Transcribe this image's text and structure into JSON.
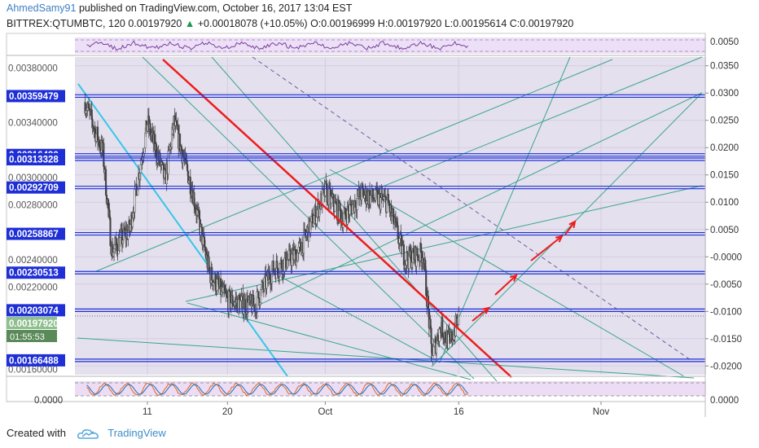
{
  "header": {
    "author": "AhmedSamy91",
    "published_text": "published on TradingView.com, October 16, 2017 13:04 EST",
    "symbol": "BITTREX:QTUMBTC, 120",
    "last_price": "0.00197920",
    "change_arrow": "▲",
    "change": "+0.00018078 (+10.05%)",
    "open": "O:0.00196999",
    "high": "H:0.00197920",
    "low": "L:0.00195614",
    "close": "C:0.00197920"
  },
  "footer": {
    "created_with": "Created with",
    "brand": "TradingView"
  },
  "colors": {
    "plot_bg": "#e4e0ee",
    "hline": "#1f2fd6",
    "teal": "#3aa58e",
    "red": "#ee1c1c",
    "cyan": "#38c6e8",
    "candle": "#424242",
    "osc_band": "#ece0f6",
    "osc_purple": "#7a3f9c"
  },
  "chart_data": {
    "type": "candlestick",
    "x_axis": {
      "ticks": [
        {
          "label": "11",
          "date": "2017-09-11"
        },
        {
          "label": "20",
          "date": "2017-09-20"
        },
        {
          "label": "Oct",
          "date": "2017-10-01"
        },
        {
          "label": "16",
          "date": "2017-10-16"
        },
        {
          "label": "Nov",
          "date": "2017-11-01"
        }
      ],
      "range": [
        "2017-09-04",
        "2017-11-07"
      ]
    },
    "left_axis": {
      "range": [
        0.00156,
        0.00388
      ],
      "ticks": [
        "0.00380000",
        "0.00340000",
        "0.00300000",
        "0.00280000",
        "0.00240000",
        "0.00220000",
        "0.00160000"
      ]
    },
    "right_axis": {
      "range": [
        -0.0216,
        0.0366
      ],
      "ticks": [
        "0.0350",
        "0.0300",
        "0.0250",
        "0.0200",
        "0.0150",
        "0.0100",
        "0.0050",
        "-0.0000",
        "-0.0050",
        "-0.0100",
        "-0.0150",
        "-0.0200"
      ]
    },
    "price_levels": [
      "0.00359479",
      "0.00316490",
      "0.00313328",
      "0.00292709",
      "0.00258867",
      "0.00230513",
      "0.00203074",
      "0.00166488"
    ],
    "current_price": "0.00197920",
    "countdown": "01:55:53",
    "rsi_panel": {
      "label": "0.0050"
    },
    "stoch_panel": {
      "left_label": "0.0000",
      "right_label": "0.0000"
    }
  }
}
